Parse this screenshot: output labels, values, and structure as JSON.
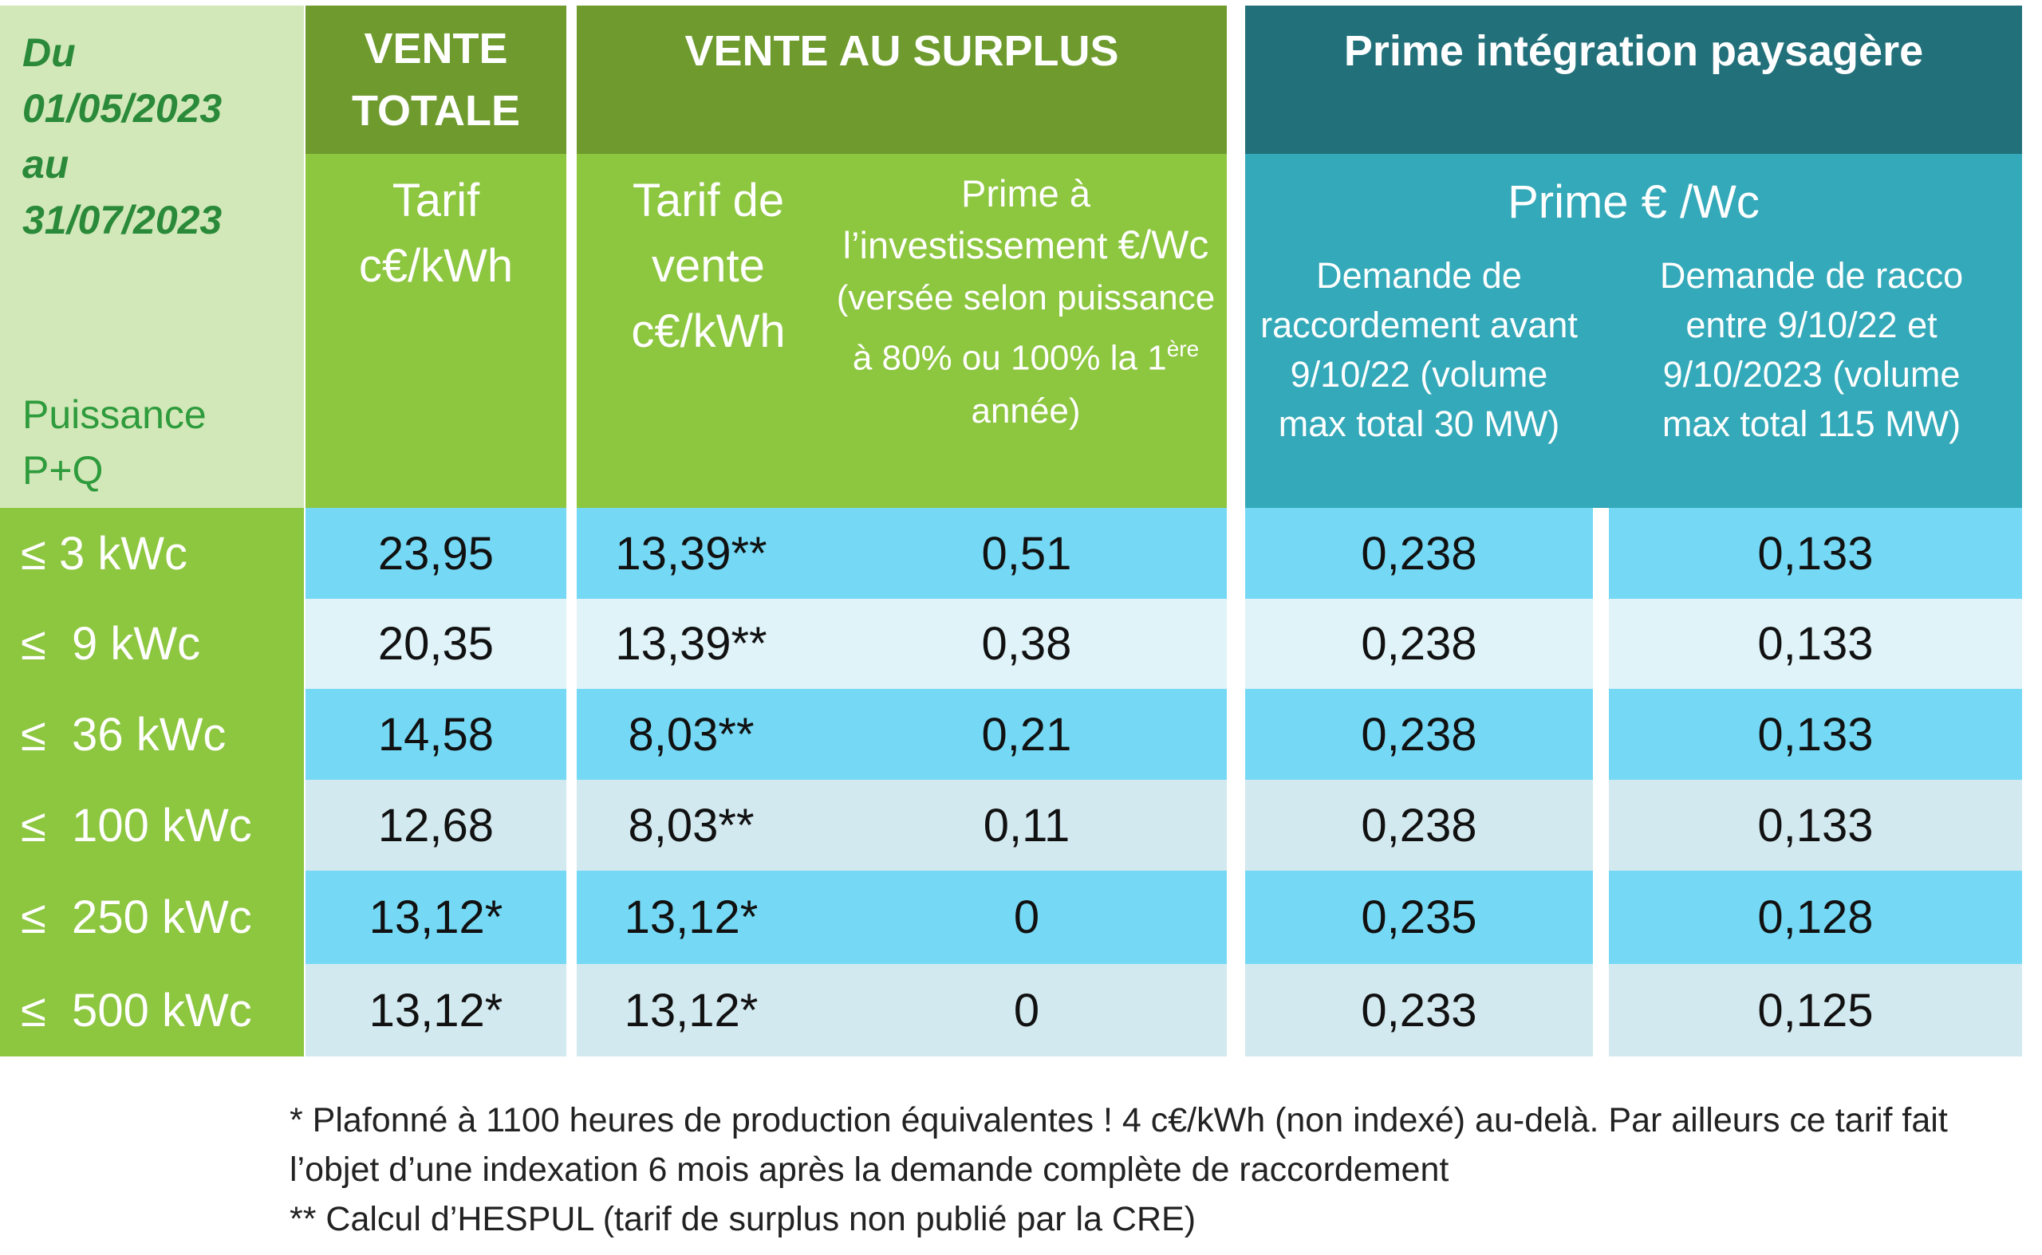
{
  "header": {
    "period": "Du 01/05/2023 au 31/07/2023",
    "power_label": "Puissance P+Q",
    "groups": [
      "VENTE TOTALE",
      "VENTE AU SURPLUS",
      "Prime intégration paysagère"
    ],
    "tarif": "Tarif c€/kWh",
    "tarif_vente": "Tarif de vente c€/kWh",
    "prime_invest": {
      "main": "Prime à l’investissement",
      "unit": "€/Wc",
      "note": "(versée selon puissance à 80% ou 100% la 1",
      "sup": "ère",
      "note_end": " année)"
    },
    "prime_wc": "Prime € /Wc",
    "demande_avant": "Demande de raccordement avant 9/10/22 (volume max total 30 MW)",
    "demande_entre": "Demande de racco entre 9/10/22 et 9/10/2023 (volume max total 115 MW)"
  },
  "table": {
    "rows": [
      [
        "≤ 3 kWc",
        "23,95",
        "13,39**",
        "0,51",
        "0,238",
        "0,133"
      ],
      [
        "≤  9 kWc",
        "20,35",
        "13,39**",
        "0,38",
        "0,238",
        "0,133"
      ],
      [
        "≤  36 kWc",
        "14,58",
        "8,03**",
        "0,21",
        "0,238",
        "0,133"
      ],
      [
        "≤  100 kWc",
        "12,68",
        "8,03**",
        "0,11",
        "0,238",
        "0,133"
      ],
      [
        "≤  250 kWc",
        "13,12*",
        "13,12*",
        "0",
        "0,235",
        "0,128"
      ],
      [
        "≤  500 kWc",
        "13,12*",
        "13,12*",
        "0",
        "0,233",
        "0,125"
      ]
    ]
  },
  "footnotes": [
    "* Plafonné à 1100 heures de production équivalentes ! 4 c€/kWh (non indexé) au-delà. Par ailleurs ce tarif fait l’objet d’une indexation 6 mois après la demande complète de raccordement",
    "** Calcul d’HESPUL (tarif de surplus non publié par la CRE)"
  ]
}
